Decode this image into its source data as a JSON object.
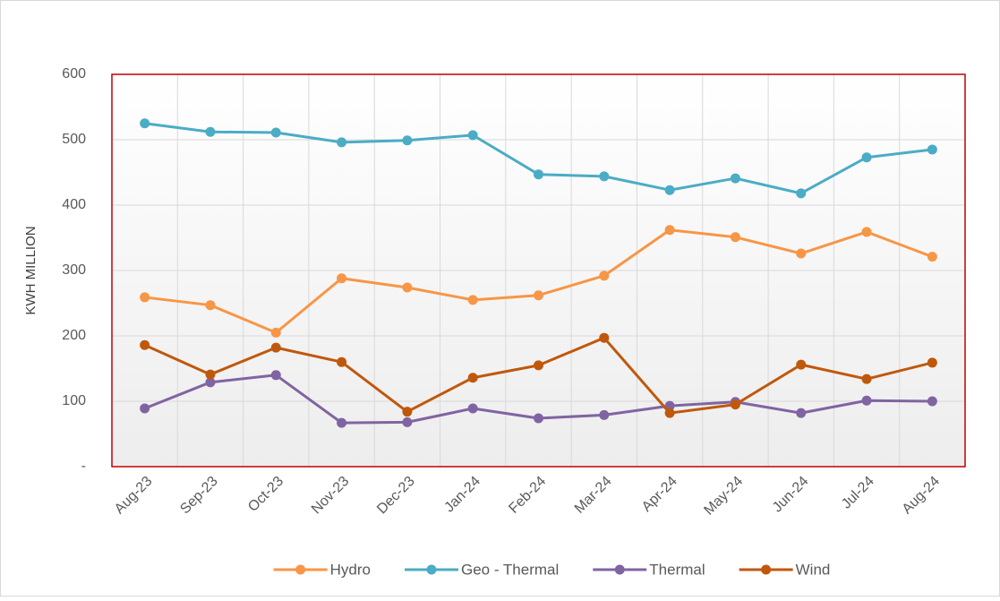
{
  "chart_data": {
    "type": "line",
    "y_label": "KWH MILLION",
    "categories": [
      "Aug-23",
      "Sep-23",
      "Oct-23",
      "Nov-23",
      "Dec-23",
      "Jan-24",
      "Feb-24",
      "Mar-24",
      "Apr-24",
      "May-24",
      "Jun-24",
      "Jul-24",
      "Aug-24"
    ],
    "series": [
      {
        "name": "Hydro",
        "color": "#f79646",
        "values": [
          259,
          247,
          205,
          288,
          274,
          255,
          262,
          292,
          362,
          351,
          326,
          359,
          321
        ]
      },
      {
        "name": "Geo - Thermal",
        "color": "#4bacc6",
        "values": [
          525,
          512,
          511,
          496,
          499,
          507,
          447,
          444,
          423,
          441,
          418,
          473,
          485
        ]
      },
      {
        "name": "Thermal",
        "color": "#8064a2",
        "values": [
          89,
          129,
          140,
          67,
          68,
          89,
          74,
          79,
          93,
          99,
          82,
          101,
          100
        ]
      },
      {
        "name": "Wind",
        "color": "#c0580c",
        "values": [
          186,
          141,
          182,
          160,
          84,
          136,
          155,
          197,
          82,
          95,
          156,
          134,
          159
        ]
      }
    ],
    "ylim": [
      0,
      600
    ],
    "yticks": [
      {
        "value": 0,
        "label": "-"
      },
      100,
      200,
      300,
      400,
      500,
      600
    ],
    "grid": true,
    "legend": "bottom"
  }
}
